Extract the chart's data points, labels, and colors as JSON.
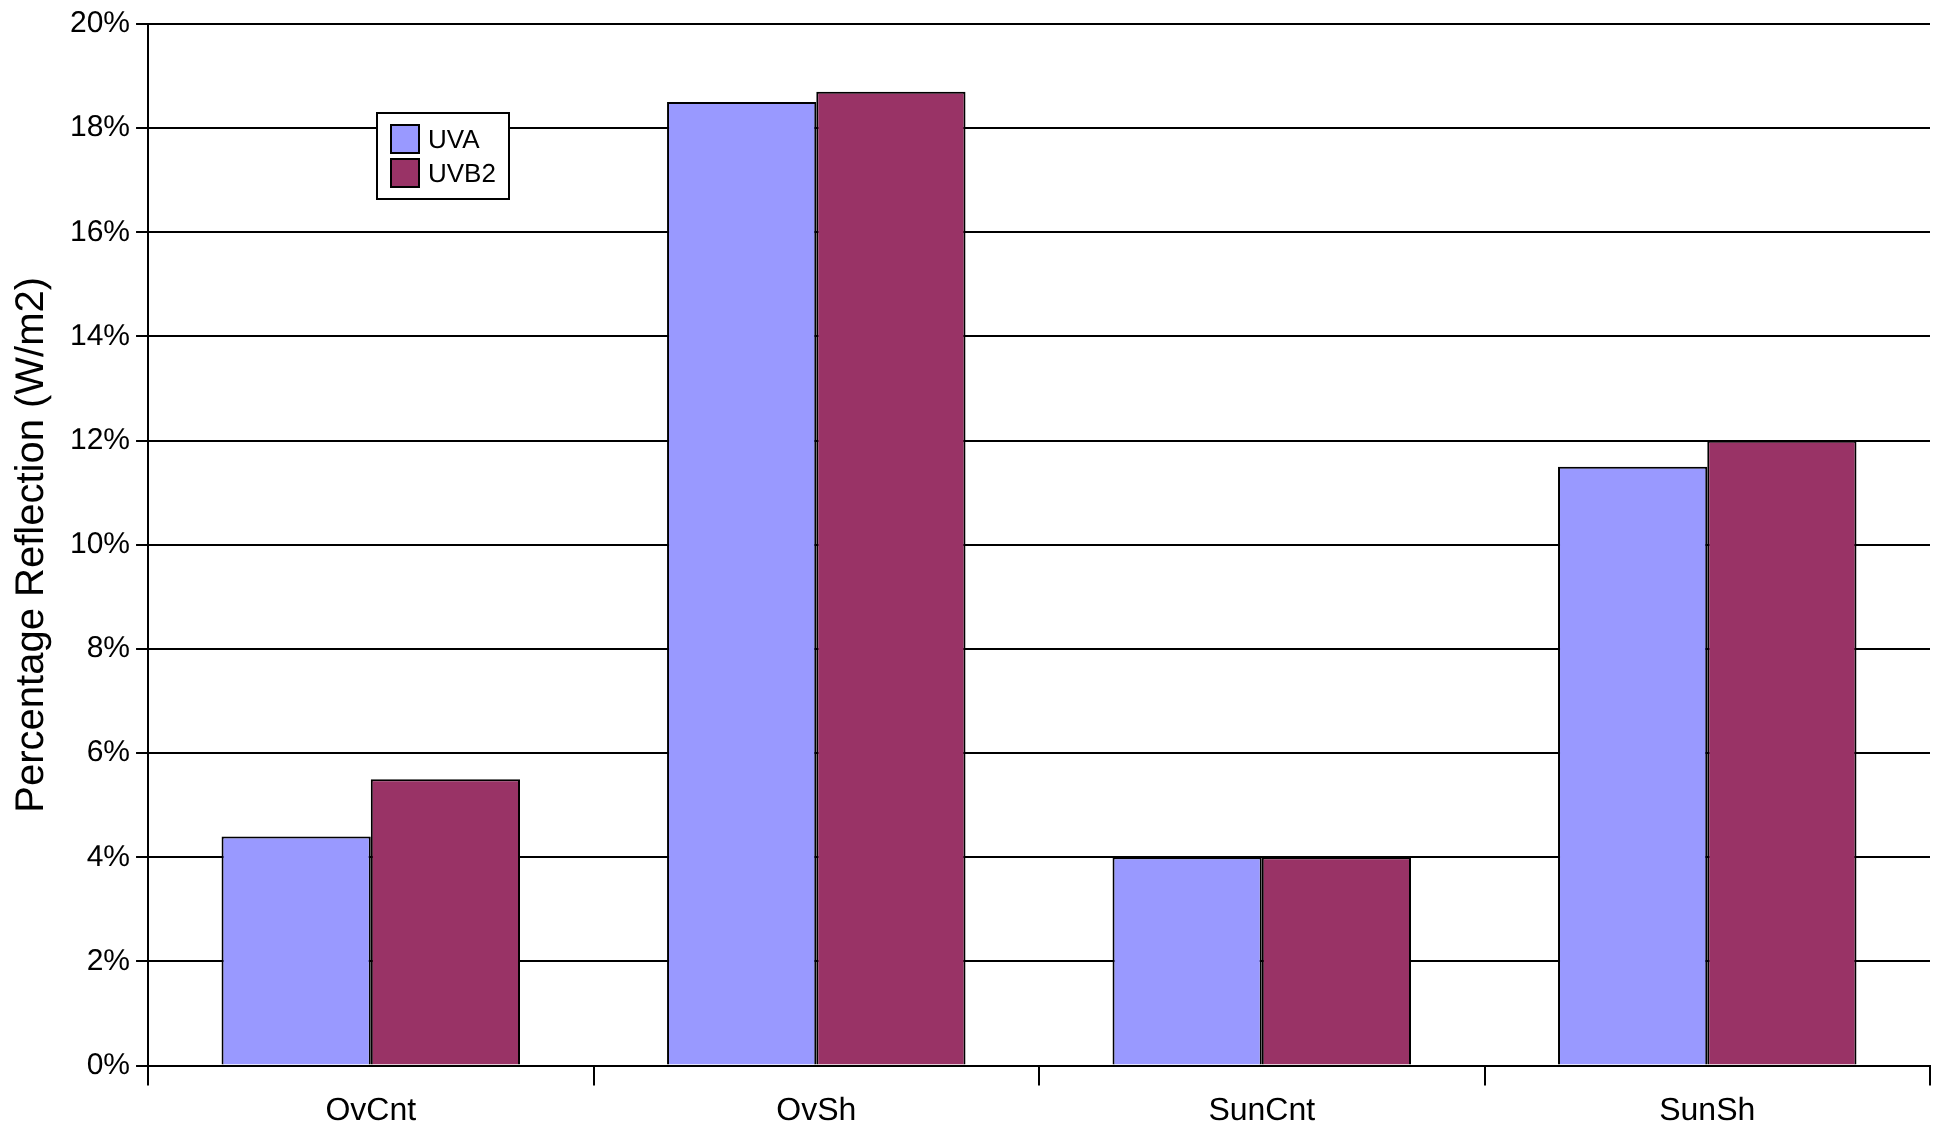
{
  "chart_data": {
    "type": "bar",
    "ylabel": "Percentage Reflection (W/m2)",
    "categories": [
      "OvCnt",
      "OvSh",
      "SunCnt",
      "SunSh"
    ],
    "series": [
      {
        "name": "UVA",
        "color": "#9999ff",
        "values": [
          4.4,
          18.5,
          4.0,
          11.5
        ]
      },
      {
        "name": "UVB2",
        "color": "#993366",
        "values": [
          5.5,
          18.7,
          4.0,
          12.0
        ]
      }
    ],
    "ylim": [
      0,
      20
    ],
    "yticks": [
      {
        "value": 0,
        "label": "0%"
      },
      {
        "value": 2,
        "label": "2%"
      },
      {
        "value": 4,
        "label": "4%"
      },
      {
        "value": 6,
        "label": "6%"
      },
      {
        "value": 8,
        "label": "8%"
      },
      {
        "value": 10,
        "label": "10%"
      },
      {
        "value": 12,
        "label": "12%"
      },
      {
        "value": 14,
        "label": "14%"
      },
      {
        "value": 16,
        "label": "16%"
      },
      {
        "value": 18,
        "label": "18%"
      },
      {
        "value": 20,
        "label": "20%"
      }
    ],
    "grid": "y",
    "legend": "top left"
  }
}
